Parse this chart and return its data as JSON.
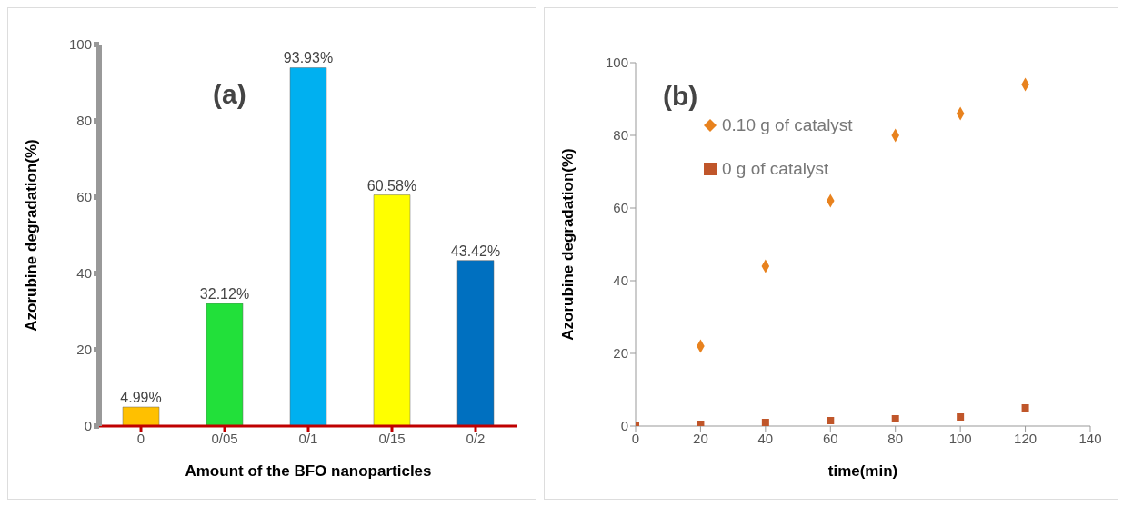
{
  "chart_data": [
    {
      "type": "bar",
      "annotations": [
        "(a)"
      ],
      "xlabel": "Amount of the BFO nanoparticles",
      "ylabel": "Azorubine degradation(%)",
      "categories": [
        "0",
        "0/05",
        "0/1",
        "0/15",
        "0/2"
      ],
      "values": [
        4.99,
        32.12,
        93.93,
        60.58,
        43.42
      ],
      "colors": [
        "#ffc000",
        "#22e03a",
        "#00b0f0",
        "#ffff00",
        "#0070c0"
      ],
      "value_labels": [
        "4.99%",
        "32.12%",
        "93.93%",
        "60.58%",
        "43.42%"
      ],
      "ylim": [
        0,
        100
      ],
      "yticks": [
        0,
        20,
        40,
        60,
        80,
        100
      ],
      "grid": false,
      "legend": false
    },
    {
      "type": "scatter",
      "annotations": [
        "(b)"
      ],
      "xlabel": "time(min)",
      "ylabel": "Azorubine degradation(%)",
      "series": [
        {
          "name": "0.10 g of catalyst",
          "color": "#e8821e",
          "marker": "diamond",
          "x": [
            20,
            40,
            60,
            80,
            100,
            120
          ],
          "values": [
            22,
            44,
            62,
            80,
            86,
            94
          ]
        },
        {
          "name": "0 g of catalyst",
          "color": "#c0562a",
          "marker": "square",
          "x": [
            0,
            20,
            40,
            60,
            80,
            100,
            120
          ],
          "values": [
            0,
            0.5,
            1,
            1.5,
            2,
            2.5,
            5
          ]
        }
      ],
      "xlim": [
        0,
        140
      ],
      "xticks": [
        0,
        20,
        40,
        60,
        80,
        100,
        120,
        140
      ],
      "ylim": [
        0,
        100
      ],
      "yticks": [
        0,
        20,
        40,
        60,
        80,
        100
      ],
      "grid": false,
      "legend": "top left"
    }
  ]
}
